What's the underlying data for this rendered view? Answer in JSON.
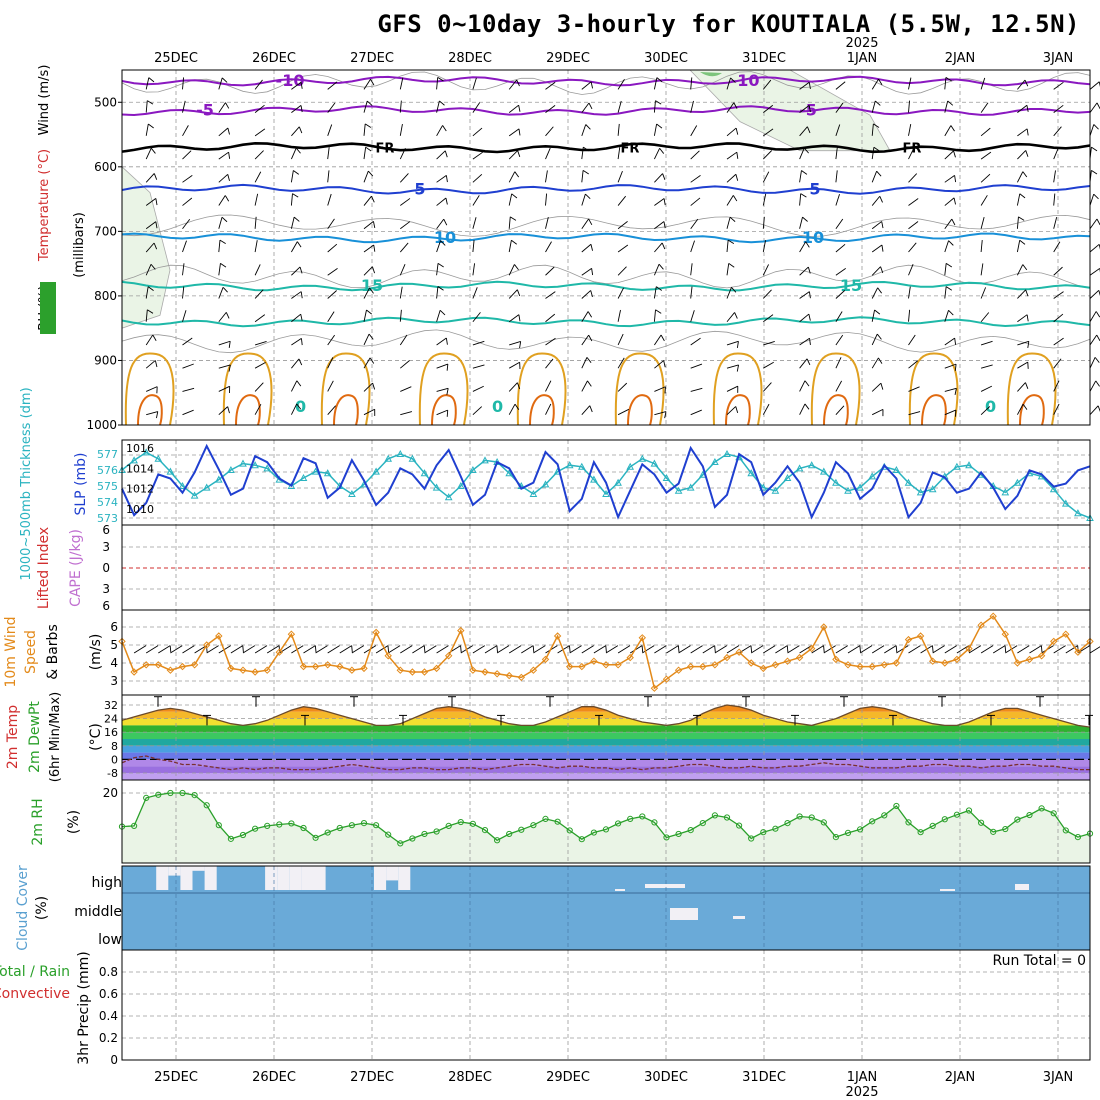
{
  "title": "GFS 0~10day 3-hourly for KOUTIALA (5.5W, 12.5N)",
  "year_label": "2025",
  "run_total_label": "Run Total = 0",
  "x_axis": {
    "dates": [
      "25DEC",
      "26DEC",
      "27DEC",
      "28DEC",
      "29DEC",
      "30DEC",
      "31DEC",
      "1JAN",
      "2JAN",
      "3JAN"
    ]
  },
  "colors": {
    "cyan": "#2ab3c0",
    "blue": "#1f3fd0",
    "purple": "#8a18c0",
    "orange": "#e38a1a",
    "green": "#2aa02a",
    "red": "#d12f2f",
    "cloud": "#6aaad8",
    "rhfill": "#eaf4e6"
  },
  "chart_data": [
    {
      "type": "contour",
      "panel": "upper-air",
      "labels": {
        "ylabel_1": "Wind (m/s)",
        "ylabel_2": "Temperature (°C)",
        "ylabel_3": "RH (%)",
        "ylabel_4": "(millibars)"
      },
      "y_ticks": [
        500,
        600,
        700,
        800,
        900,
        1000
      ],
      "ylim": [
        450,
        1000
      ],
      "isotherms": [
        {
          "temp_c": -10,
          "label": "-10",
          "mean_pressure_mb": 467
        },
        {
          "temp_c": -5,
          "label": "-5",
          "mean_pressure_mb": 513
        },
        {
          "temp_c": 0,
          "label": "FR",
          "mean_pressure_mb": 570
        },
        {
          "temp_c": 5,
          "label": "5",
          "mean_pressure_mb": 635
        },
        {
          "temp_c": 10,
          "label": "10",
          "mean_pressure_mb": 710
        },
        {
          "temp_c": 15,
          "label": "15",
          "mean_pressure_mb": 785
        },
        {
          "temp_c": 20,
          "label": "",
          "mean_pressure_mb": 840
        }
      ],
      "boundary_layer_label": "0"
    },
    {
      "type": "line",
      "panel": "slp-thickness",
      "labels": {
        "ylabel_left": "1000~500mb Thickness (dm)",
        "ylabel_right": "SLP (mb)"
      },
      "left_ticks": [
        573,
        574,
        575,
        576,
        577
      ],
      "right_ticks": [
        1010,
        1012,
        1014,
        1016
      ],
      "series": [
        {
          "name": "Thickness",
          "values": [
            576.0,
            576.6,
            577.1,
            576.7,
            575.9,
            575.0,
            574.4,
            574.9,
            575.4,
            576.0,
            576.4,
            576.3,
            576.1,
            575.4,
            575.0,
            575.5,
            575.9,
            575.8,
            575.0,
            574.5,
            575.1,
            575.9,
            576.7,
            577.0,
            576.7,
            575.8,
            574.9,
            574.3,
            575.0,
            576.0,
            576.6,
            576.5,
            575.8,
            575.0,
            574.5,
            575.1,
            575.9,
            576.3,
            576.2,
            575.4,
            574.5,
            575.2,
            576.2,
            576.7,
            576.4,
            575.5,
            574.7,
            574.9,
            575.7,
            576.5,
            577.0,
            576.8,
            575.8,
            574.9,
            574.7,
            575.5,
            576.1,
            576.3,
            575.9,
            575.2,
            574.7,
            574.9,
            575.6,
            576.2,
            576.0,
            575.2,
            574.6,
            574.8,
            575.6,
            576.2,
            576.3,
            575.7,
            575.0,
            574.6,
            575.2,
            575.8,
            575.6,
            574.8,
            573.9,
            573.3,
            573.0
          ]
        },
        {
          "name": "SLP",
          "values": [
            1012.0,
            1009.4,
            1010.6,
            1013.4,
            1013.0,
            1011.6,
            1013.6,
            1016.2,
            1013.9,
            1011.4,
            1012.0,
            1015.2,
            1014.6,
            1013.0,
            1012.3,
            1015.0,
            1014.5,
            1011.1,
            1012.1,
            1014.8,
            1012.8,
            1010.4,
            1011.6,
            1014.0,
            1013.4,
            1012.0,
            1014.3,
            1015.8,
            1013.2,
            1010.4,
            1011.4,
            1014.6,
            1014.0,
            1012.0,
            1012.6,
            1015.6,
            1014.4,
            1009.8,
            1011.0,
            1014.6,
            1012.6,
            1009.2,
            1011.8,
            1014.4,
            1013.4,
            1011.6,
            1012.5,
            1016.0,
            1014.2,
            1010.2,
            1011.4,
            1015.4,
            1014.6,
            1011.4,
            1012.6,
            1014.2,
            1012.6,
            1009.2,
            1011.6,
            1014.6,
            1013.5,
            1011.0,
            1012.0,
            1014.3,
            1013.0,
            1009.2,
            1010.6,
            1013.6,
            1013.1,
            1011.6,
            1012.0,
            1013.6,
            1012.1,
            1010.0,
            1011.3,
            1013.8,
            1013.4,
            1012.2,
            1012.5,
            1013.8,
            1014.2
          ]
        }
      ]
    },
    {
      "type": "line",
      "panel": "stability",
      "labels": {
        "ylabel_left": "Lifted Index",
        "ylabel_right": "CAPE (J/kg)"
      },
      "y_ticks": [
        6,
        3,
        0,
        -3,
        -6
      ],
      "tick_labels": [
        "6",
        "3",
        "0",
        "3",
        "6"
      ],
      "series": [
        {
          "name": "CAPE",
          "values": [
            0
          ]
        }
      ]
    },
    {
      "type": "line",
      "panel": "wind",
      "labels": {
        "ylabel_1": "10m Wind",
        "ylabel_2": "Speed",
        "ylabel_3": "& Barbs",
        "ylabel_4": "(m/s)"
      },
      "y_ticks": [
        3,
        4,
        5,
        6
      ],
      "ylim": [
        2.3,
        6.9
      ],
      "series": [
        {
          "name": "10m Wind Speed",
          "values": [
            5.2,
            3.5,
            3.9,
            3.9,
            3.6,
            3.8,
            3.9,
            5.0,
            5.5,
            3.7,
            3.6,
            3.5,
            3.6,
            4.6,
            5.6,
            3.8,
            3.8,
            3.9,
            3.8,
            3.6,
            3.7,
            5.7,
            4.4,
            3.6,
            3.5,
            3.5,
            3.7,
            4.4,
            5.8,
            3.6,
            3.5,
            3.4,
            3.3,
            3.2,
            3.6,
            4.2,
            5.5,
            3.8,
            3.8,
            4.1,
            3.9,
            3.9,
            4.3,
            5.4,
            2.6,
            3.1,
            3.6,
            3.8,
            3.8,
            3.9,
            4.3,
            4.6,
            4.0,
            3.7,
            3.9,
            4.1,
            4.3,
            4.8,
            6.0,
            4.2,
            3.9,
            3.8,
            3.8,
            3.9,
            4.0,
            5.3,
            5.5,
            4.1,
            4.0,
            4.2,
            4.8,
            6.1,
            6.6,
            5.6,
            4.0,
            4.2,
            4.4,
            5.2,
            5.6,
            4.6,
            5.2
          ]
        }
      ]
    },
    {
      "type": "area",
      "panel": "temperature",
      "labels": {
        "ylabel_1": "2m Temp",
        "ylabel_2": "2m DewPt",
        "ylabel_3": "(6hr Min/Max)",
        "ylabel_4": "(°C)"
      },
      "y_ticks": [
        32,
        24,
        16,
        8,
        0,
        -8
      ],
      "ylim": [
        -12,
        36
      ],
      "series": [
        {
          "name": "2m Temp",
          "values": [
            23,
            25,
            27,
            29,
            30,
            29,
            27,
            25,
            23,
            21,
            20,
            21,
            23,
            26,
            29,
            31,
            30,
            28,
            26,
            24,
            22,
            20,
            20,
            21,
            24,
            27,
            30,
            31,
            30,
            28,
            25,
            23,
            21,
            20,
            20,
            22,
            25,
            28,
            31,
            31,
            29,
            26,
            24,
            22,
            21,
            20,
            21,
            23,
            27,
            30,
            32,
            31,
            29,
            26,
            24,
            22,
            21,
            20,
            22,
            24,
            27,
            30,
            31,
            30,
            28,
            25,
            23,
            21,
            20,
            20,
            22,
            25,
            28,
            30,
            30,
            28,
            26,
            24,
            22,
            20,
            19
          ]
        },
        {
          "name": "2m DewPt",
          "values": [
            -2,
            1,
            2,
            0,
            -1,
            -3,
            -3,
            -4,
            -5,
            -6,
            -5,
            -6,
            -5,
            -5,
            -6,
            -6,
            -6,
            -5,
            -4,
            -3,
            -4,
            -5,
            -6,
            -6,
            -5,
            -5,
            -6,
            -6,
            -5,
            -5,
            -6,
            -5,
            -4,
            -3,
            -3,
            -4,
            -5,
            -4,
            -4,
            -5,
            -5,
            -6,
            -5,
            -6,
            -5,
            -5,
            -4,
            -3,
            -3,
            -4,
            -5,
            -5,
            -4,
            -5,
            -5,
            -4,
            -4,
            -3,
            -2,
            -3,
            -3,
            -4,
            -5,
            -5,
            -5,
            -4,
            -4,
            -3,
            -3,
            -4,
            -4,
            -5,
            -4,
            -4,
            -3,
            -3,
            -4,
            -4,
            -5,
            -6,
            -6
          ]
        }
      ]
    },
    {
      "type": "area",
      "panel": "rh",
      "labels": {
        "ylabel_1": "2m RH",
        "ylabel_2": "(%)"
      },
      "y_ticks": [
        20
      ],
      "ylim": [
        0,
        22
      ],
      "series": [
        {
          "name": "2m RH",
          "values": [
            10.4,
            10.6,
            18.6,
            19.5,
            20.0,
            20.0,
            19.4,
            16.5,
            10.8,
            6.9,
            8.0,
            9.8,
            10.6,
            11.0,
            11.3,
            10.0,
            7.2,
            8.7,
            10.0,
            10.8,
            11.4,
            10.8,
            8.1,
            5.6,
            7.0,
            8.3,
            9.0,
            10.6,
            11.7,
            11.2,
            9.4,
            6.5,
            8.3,
            9.5,
            10.8,
            12.6,
            11.8,
            9.3,
            6.8,
            8.7,
            9.6,
            11.3,
            12.6,
            13.3,
            11.6,
            7.3,
            8.3,
            9.4,
            11.4,
            13.6,
            13.0,
            10.7,
            7.0,
            8.8,
            9.8,
            11.4,
            13.3,
            13.0,
            11.6,
            7.4,
            8.6,
            9.6,
            11.9,
            13.6,
            16.3,
            11.6,
            8.8,
            10.6,
            12.5,
            13.8,
            15.0,
            11.5,
            8.9,
            9.7,
            12.4,
            13.7,
            15.6,
            14.2,
            9.3,
            7.4,
            8.4
          ]
        }
      ]
    },
    {
      "type": "heatmap",
      "panel": "cloud-cover",
      "labels": {
        "ylabel_1": "Cloud Cover",
        "ylabel_2": "(%)"
      },
      "y_tick_labels": [
        "high",
        "middle",
        "low"
      ],
      "layers": [
        {
          "name": "high",
          "values": [
            100,
            100,
            0,
            60,
            0,
            80,
            0,
            100,
            100,
            100,
            100,
            0,
            0,
            0,
            0,
            0,
            100,
            100,
            100,
            100,
            0,
            40,
            0,
            100,
            100,
            100,
            100,
            100,
            100,
            100,
            100,
            100,
            100,
            100,
            100,
            100,
            100,
            100,
            100,
            100,
            100,
            100,
            100,
            100,
            100,
            100,
            100,
            100,
            100,
            100,
            100,
            100,
            100,
            100,
            100,
            100,
            100,
            100,
            100,
            100,
            100,
            100,
            100,
            100,
            100,
            100,
            100,
            100,
            100,
            100,
            100,
            100,
            100,
            100,
            100,
            100,
            100,
            100,
            100,
            100,
            100
          ]
        },
        {
          "name": "middle",
          "values": [
            100,
            100,
            100,
            100,
            100,
            100,
            100,
            100,
            100,
            100,
            100,
            100,
            100,
            100,
            100,
            100,
            100,
            100,
            100,
            100,
            100,
            100,
            100,
            100,
            100,
            100,
            100,
            100,
            100,
            100,
            100,
            100,
            100,
            100,
            100,
            100,
            100,
            100,
            100,
            100,
            100,
            100,
            100,
            100,
            100,
            100,
            100,
            100,
            100,
            100,
            100,
            100,
            100,
            100,
            100,
            100,
            100,
            100,
            100,
            100,
            100,
            100,
            100,
            100,
            100,
            100,
            100,
            100,
            100,
            100,
            100,
            100,
            100,
            100,
            100,
            100,
            100,
            100,
            100,
            100,
            100
          ]
        },
        {
          "name": "low",
          "values": [
            100,
            100,
            100,
            100,
            100,
            100,
            100,
            100,
            100,
            100,
            100,
            100,
            100,
            100,
            100,
            100,
            100,
            100,
            100,
            100,
            100,
            100,
            100,
            100,
            100,
            100,
            100,
            100,
            100,
            100,
            100,
            100,
            100,
            100,
            100,
            100,
            100,
            100,
            100,
            100,
            100,
            100,
            100,
            100,
            100,
            100,
            100,
            100,
            100,
            100,
            100,
            100,
            100,
            100,
            100,
            100,
            100,
            100,
            100,
            100,
            100,
            100,
            100,
            100,
            100,
            100,
            100,
            100,
            100,
            100,
            100,
            100,
            100,
            100,
            100,
            100,
            100,
            100,
            100,
            100,
            100
          ]
        }
      ]
    },
    {
      "type": "bar",
      "panel": "precip",
      "labels": {
        "ylabel_1": "Total / Rain",
        "ylabel_2": "Convective",
        "ylabel_3": "3hr Precip (mm)"
      },
      "y_ticks": [
        0,
        0.2,
        0.4,
        0.6,
        0.8
      ],
      "ylim": [
        0,
        0.95
      ],
      "series": [
        {
          "name": "3hr Precip",
          "values": [
            0
          ]
        }
      ]
    }
  ]
}
